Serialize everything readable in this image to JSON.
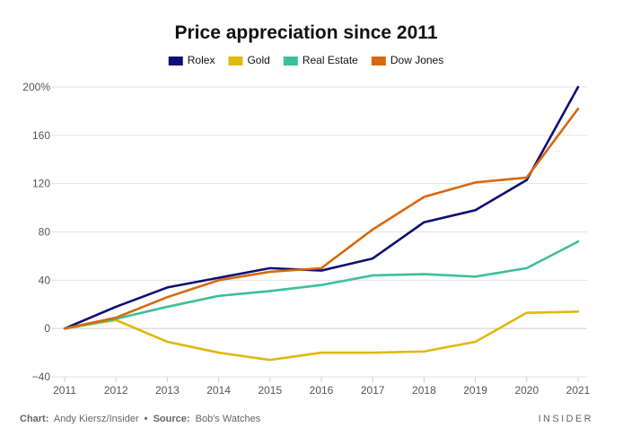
{
  "chart_data": {
    "type": "line",
    "title": "Price appreciation since 2011",
    "xlabel": "",
    "ylabel": "",
    "x": [
      2011,
      2012,
      2013,
      2014,
      2015,
      2016,
      2017,
      2018,
      2019,
      2020,
      2021
    ],
    "xlim": [
      2011,
      2021
    ],
    "ylim": [
      -40,
      200
    ],
    "y_ticks": [
      -40,
      0,
      40,
      80,
      120,
      160,
      200
    ],
    "y_tick_labels": [
      "−40",
      "0",
      "40",
      "80",
      "120",
      "160",
      "200%"
    ],
    "x_tick_labels": [
      "2011",
      "2012",
      "2013",
      "2014",
      "2015",
      "2016",
      "2017",
      "2018",
      "2019",
      "2020",
      "2021"
    ],
    "grid": "horizontal",
    "legend_position": "top-center",
    "series": [
      {
        "name": "Rolex",
        "color": "#0d0f73",
        "values": [
          0,
          18,
          34,
          42,
          50,
          48,
          58,
          88,
          98,
          123,
          200
        ]
      },
      {
        "name": "Gold",
        "color": "#e0b80f",
        "values": [
          0,
          7,
          -11,
          -20,
          -26,
          -20,
          -20,
          -19,
          -11,
          13,
          14
        ]
      },
      {
        "name": "Real Estate",
        "color": "#3dbf9a",
        "values": [
          0,
          8,
          18,
          27,
          31,
          36,
          44,
          45,
          43,
          50,
          72
        ]
      },
      {
        "name": "Dow Jones",
        "color": "#d9680f",
        "values": [
          0,
          9,
          26,
          40,
          47,
          50,
          82,
          109,
          121,
          125,
          182
        ]
      }
    ]
  },
  "footer": {
    "chart_prefix": "Chart:",
    "chart_author": "Andy Kiersz/Insider",
    "bullet": "•",
    "source_prefix": "Source:",
    "source_name": "Bob's Watches",
    "brand": "INSIDER"
  }
}
